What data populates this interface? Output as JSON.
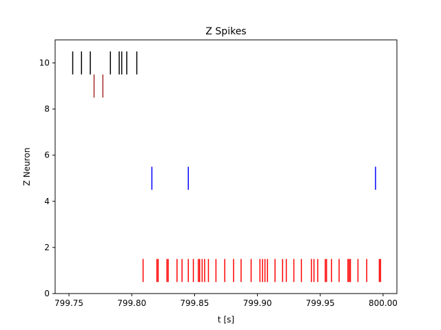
{
  "chart_data": {
    "type": "raster",
    "title": "Z Spikes",
    "xlabel": "t [s]",
    "ylabel": "Z Neuron",
    "xlim": [
      799.739,
      800.011
    ],
    "ylim": [
      0,
      11
    ],
    "xticks": [
      799.75,
      799.8,
      799.85,
      799.9,
      799.95,
      800.0
    ],
    "xtick_labels": [
      "799.75",
      "799.80",
      "799.85",
      "799.90",
      "799.95",
      "800.00"
    ],
    "yticks": [
      0,
      2,
      4,
      6,
      8,
      10
    ],
    "ytick_labels": [
      "0",
      "2",
      "4",
      "6",
      "8",
      "10"
    ],
    "grid": false,
    "series": [
      {
        "neuron": 10,
        "color": "#000000",
        "spike_times": [
          799.753,
          799.76,
          799.767,
          799.783,
          799.79,
          799.792,
          799.796,
          799.804
        ]
      },
      {
        "neuron": 9,
        "color": "#a52a2a",
        "spike_times": [
          799.77,
          799.777
        ]
      },
      {
        "neuron": 5,
        "color": "#0000ff",
        "spike_times": [
          799.816,
          799.845,
          799.994
        ]
      },
      {
        "neuron": 1,
        "color": "#ff0000",
        "spike_times": [
          799.809,
          799.82,
          799.821,
          799.828,
          799.829,
          799.836,
          799.84,
          799.845,
          799.849,
          799.853,
          799.854,
          799.856,
          799.858,
          799.861,
          799.867,
          799.874,
          799.881,
          799.887,
          799.895,
          799.902,
          799.904,
          799.906,
          799.908,
          799.914,
          799.92,
          799.923,
          799.929,
          799.935,
          799.943,
          799.945,
          799.948,
          799.954,
          799.955,
          799.959,
          799.965,
          799.972,
          799.973,
          799.974,
          799.98,
          799.987,
          799.997,
          799.998
        ]
      }
    ]
  }
}
